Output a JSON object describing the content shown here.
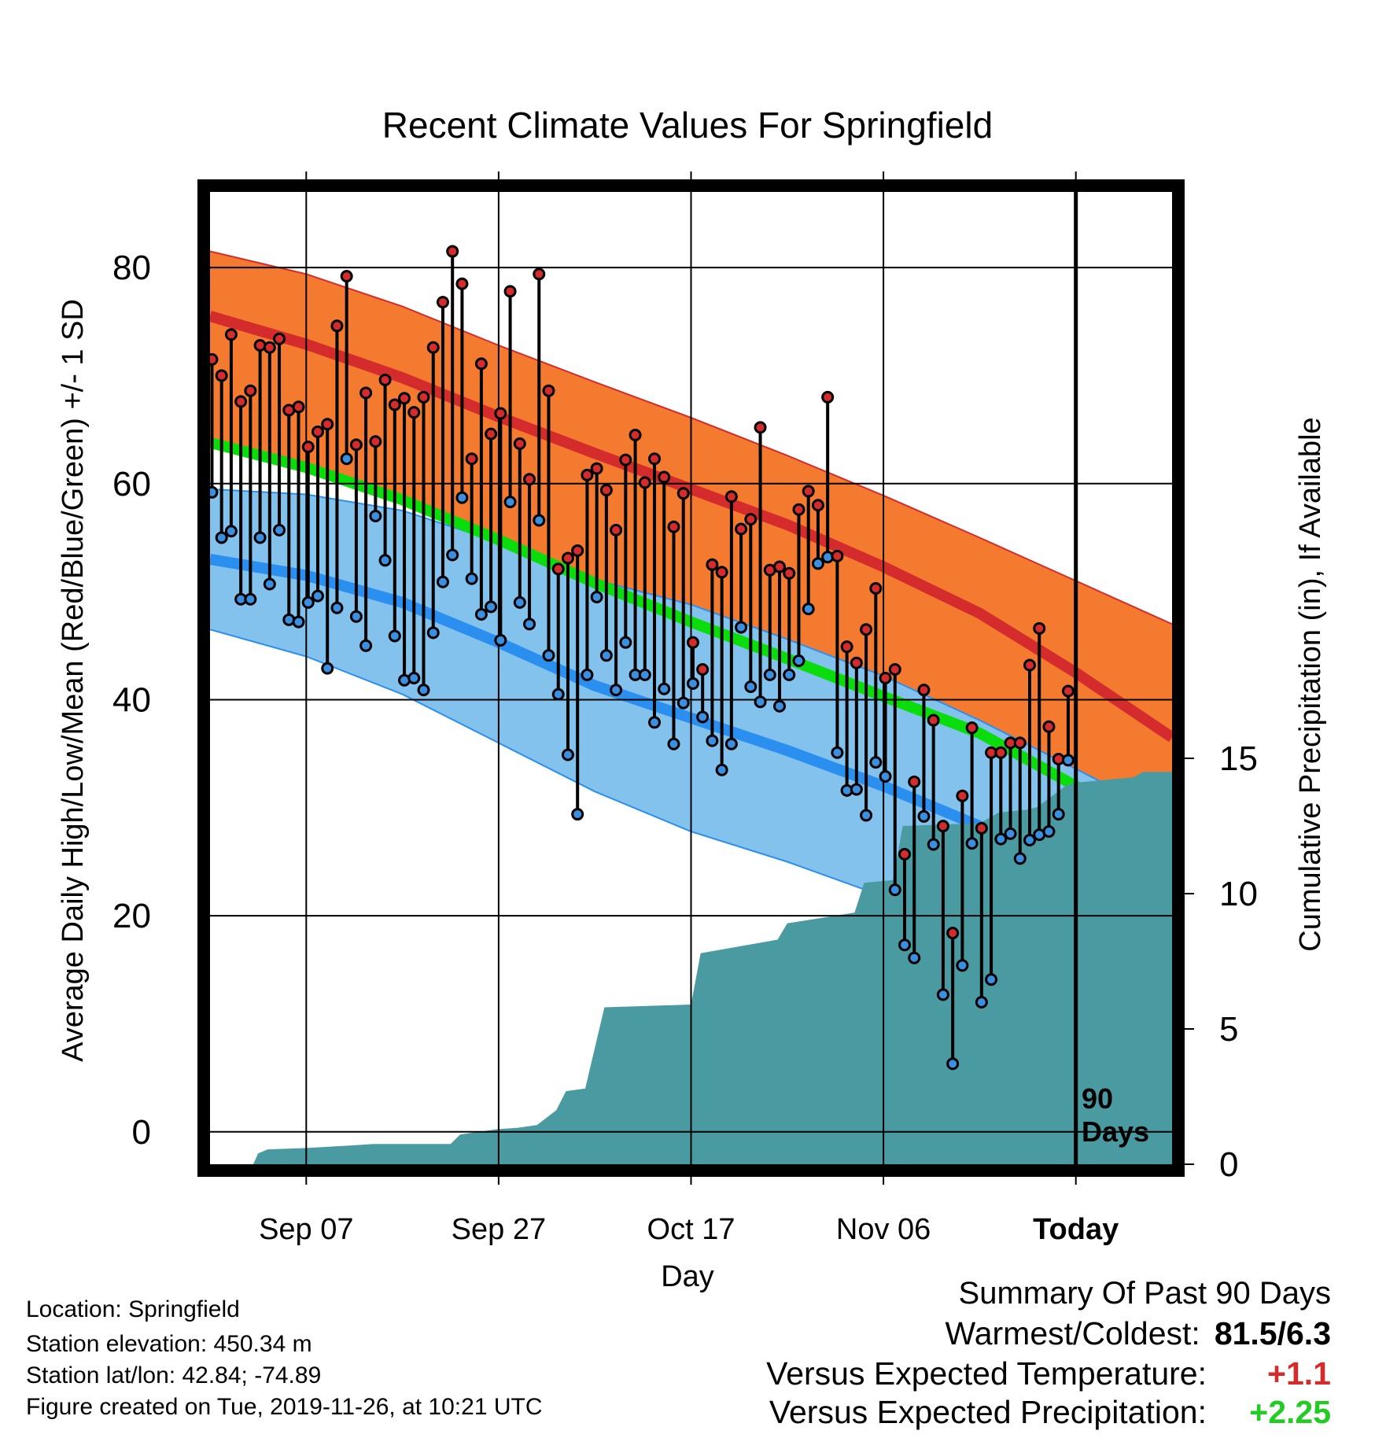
{
  "title": "Recent Climate Values For Springfield",
  "xlabel": "Day",
  "ylabel_left": "Average Daily High/Low/Mean (Red/Blue/Green) +/- 1 SD",
  "ylabel_right": "Cumulative Precipitation (in), If Available",
  "marker_label_line1": "90",
  "marker_label_line2": "Days",
  "info": {
    "location": "Location: Springfield",
    "elevation": "Station elevation: 450.34 m",
    "latlon": "Station lat/lon: 42.84; -74.89",
    "created": "Figure created on Tue, 2019-11-26, at 10:21 UTC"
  },
  "summary": {
    "heading": "Summary Of Past 90 Days",
    "warmest_coldest_label": "Warmest/Coldest:",
    "warmest_coldest_value": "81.5/6.3",
    "temp_label": "Versus Expected Temperature:",
    "temp_value": "+1.1",
    "temp_color": "#d42c2c",
    "precip_label": "Versus Expected Precipitation:",
    "precip_value": "+2.25",
    "precip_color": "#22cc22"
  },
  "colors": {
    "high_band": "#f47a30",
    "high_mean": "#d42c2c",
    "low_band": "#82c2ec",
    "low_mean": "#2b8ff0",
    "mean_line": "#0bdc0b",
    "overlap": "#8f1717",
    "precip": "#4a9aa1",
    "high_marker": "#d42c2c",
    "low_marker": "#3b8fe0"
  },
  "chart_data": {
    "type": "line",
    "x_range": [
      -10,
      90
    ],
    "xticks": [
      {
        "day": 0,
        "label": "Sep 07"
      },
      {
        "day": 20,
        "label": "Sep 27"
      },
      {
        "day": 40,
        "label": "Oct 17"
      },
      {
        "day": 60,
        "label": "Nov 06"
      },
      {
        "day": 80,
        "label": "Today"
      }
    ],
    "ylim": [
      -3,
      87
    ],
    "yticks": [
      0,
      20,
      40,
      60,
      80
    ],
    "y2lim": [
      0,
      30
    ],
    "y2ticks": [
      0,
      5,
      10,
      15
    ],
    "normals": {
      "days": [
        -10,
        0,
        10,
        20,
        30,
        40,
        50,
        60,
        70,
        80,
        90
      ],
      "high_upper": [
        81.5,
        79.4,
        76.4,
        72.8,
        69.4,
        66.1,
        62.6,
        58.9,
        55.0,
        51.0,
        47.0
      ],
      "high_mean": [
        75.5,
        72.9,
        69.8,
        66.2,
        62.8,
        59.5,
        56.2,
        52.3,
        48.0,
        42.5,
        36.5
      ],
      "mean": [
        63.8,
        61.5,
        58.5,
        54.8,
        50.8,
        47.2,
        43.8,
        40.3,
        36.9,
        32.0,
        26.8
      ],
      "low_mean": [
        53.0,
        51.5,
        49.0,
        45.3,
        41.3,
        38.3,
        35.3,
        32.0,
        28.3,
        25.3,
        22.0
      ],
      "low_lower": [
        46.5,
        44.0,
        40.5,
        36.0,
        31.5,
        27.8,
        25.0,
        21.8,
        18.5,
        17.0,
        15.0
      ]
    },
    "series": [
      {
        "name": "High",
        "values": [
          71.5,
          70.0,
          73.8,
          67.6,
          68.6,
          72.8,
          72.6,
          73.4,
          66.8,
          67.1,
          63.4,
          64.8,
          65.5,
          74.6,
          79.2,
          63.6,
          68.4,
          63.9,
          69.6,
          67.3,
          67.9,
          66.6,
          68.0,
          72.6,
          76.8,
          81.5,
          78.5,
          62.3,
          71.1,
          64.6,
          66.5,
          77.8,
          63.7,
          60.4,
          79.4,
          68.6,
          52.1,
          53.1,
          53.8,
          60.8,
          61.4,
          59.4,
          55.7,
          62.2,
          64.5,
          60.1,
          62.3,
          60.6,
          56.0,
          59.1,
          45.3,
          42.8,
          52.5,
          51.8,
          58.8,
          55.8,
          56.7,
          65.2,
          52.0,
          52.3,
          51.7,
          57.6,
          59.3,
          58.0,
          68.0,
          53.3,
          44.9,
          43.4,
          46.5,
          50.3,
          42.0,
          42.8,
          25.7,
          32.4,
          40.9,
          38.1,
          28.3,
          18.4,
          31.1,
          37.4,
          28.1,
          35.1,
          35.1,
          36.0,
          36.0,
          43.2,
          46.6,
          37.5,
          34.5,
          40.8
        ]
      },
      {
        "name": "Low",
        "values": [
          59.2,
          55.0,
          55.6,
          49.3,
          49.3,
          55.0,
          50.7,
          55.7,
          47.4,
          47.2,
          49.0,
          49.6,
          42.9,
          48.5,
          62.3,
          47.7,
          45.0,
          57.0,
          52.9,
          45.9,
          41.8,
          42.0,
          40.9,
          46.2,
          50.9,
          53.4,
          58.7,
          51.2,
          47.9,
          48.6,
          45.5,
          58.3,
          49.0,
          47.0,
          56.6,
          44.1,
          40.5,
          34.9,
          29.4,
          42.3,
          49.5,
          44.1,
          40.9,
          45.3,
          42.3,
          42.3,
          37.9,
          41.0,
          35.9,
          39.7,
          41.5,
          38.4,
          36.2,
          33.5,
          35.9,
          46.7,
          41.2,
          39.8,
          42.3,
          39.4,
          42.3,
          43.6,
          48.4,
          52.6,
          53.2,
          35.1,
          31.6,
          31.7,
          29.3,
          34.2,
          32.9,
          22.4,
          17.3,
          16.1,
          29.2,
          26.6,
          12.7,
          6.3,
          15.4,
          26.7,
          12.0,
          14.1,
          27.1,
          27.6,
          25.3,
          27.0,
          27.5,
          27.8,
          29.4,
          34.4
        ]
      },
      {
        "name": "Cumulative Precipitation",
        "days": [
          -10,
          -5.5,
          -5,
          -4,
          0,
          5,
          7,
          15,
          16,
          17,
          20,
          22,
          24,
          26,
          27,
          29,
          31,
          40,
          41,
          49,
          50,
          57,
          58,
          61,
          62,
          70,
          71,
          72,
          75,
          76,
          79,
          80,
          86,
          87,
          90
        ],
        "values": [
          0,
          0,
          0.4,
          0.55,
          0.6,
          0.7,
          0.75,
          0.75,
          1.1,
          1.15,
          1.3,
          1.35,
          1.45,
          2.0,
          2.7,
          2.8,
          5.8,
          5.9,
          7.8,
          8.3,
          8.9,
          9.3,
          10.4,
          10.5,
          12.5,
          12.6,
          12.8,
          13.0,
          13.1,
          13.2,
          14.0,
          14.1,
          14.3,
          14.5,
          14.5
        ]
      }
    ]
  }
}
